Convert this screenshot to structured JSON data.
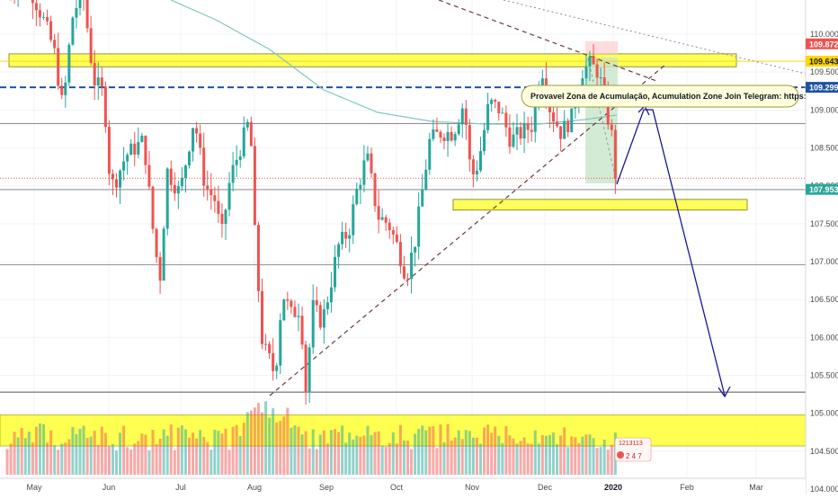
{
  "chart_data": {
    "type": "candlestick",
    "y_axis": {
      "ticks": [
        "110.000",
        "109.500",
        "109.000",
        "108.500",
        "108.000",
        "107.500",
        "107.000",
        "106.500",
        "106.000",
        "105.500",
        "105.000",
        "104.500",
        "104.000"
      ],
      "range": [
        103.93,
        110.45
      ]
    },
    "x_axis": {
      "ticks": [
        "May",
        "Jun",
        "Jul",
        "Aug",
        "Sep",
        "Oct",
        "Nov",
        "Dec",
        "2020",
        "Feb",
        "Mar"
      ],
      "bold_tick": "2020"
    },
    "price_labels": [
      {
        "value": "109.872",
        "price": 109.872,
        "color": "#ef5350"
      },
      {
        "value": "109.643",
        "price": 109.643,
        "color": "#ffd600"
      },
      {
        "value": "109.299",
        "price": 109.299,
        "color": "#1e53a0"
      },
      {
        "value": "107.953",
        "price": 107.953,
        "color": "#26a69a"
      }
    ],
    "horizontal_levels": [
      {
        "price": 109.299,
        "style": "dashed",
        "color": "#1e53a0"
      },
      {
        "price": 108.82,
        "style": "solid",
        "color": "#8a8a8a"
      },
      {
        "price": 107.95,
        "style": "solid",
        "color": "#8a8a8a"
      },
      {
        "price": 106.96,
        "style": "solid",
        "color": "#8a8a8a"
      },
      {
        "price": 105.28,
        "style": "solid",
        "color": "#555555"
      },
      {
        "price": 108.1,
        "style": "dotted",
        "color": "#ef5350"
      }
    ],
    "zones": [
      {
        "kind": "resistance",
        "price_low": 109.57,
        "price_high": 109.74,
        "color": "#ffff33"
      },
      {
        "kind": "accumulation",
        "price_low": 107.68,
        "price_high": 107.82,
        "color": "#ffff33"
      },
      {
        "kind": "target",
        "price_low": 104.57,
        "price_high": 104.98,
        "color": "#ffff33"
      }
    ],
    "annotation": "Provavel Zona de Acumulação, Acumulation Zone   Join Telegram:  https://t.me/otisforex",
    "volume_badge": [
      "1213113",
      "2 4 7"
    ],
    "colors": {
      "up": "#26a69a",
      "down": "#ef5350",
      "ma": "#7ec8c0",
      "projection": "#1a1a8c"
    }
  }
}
